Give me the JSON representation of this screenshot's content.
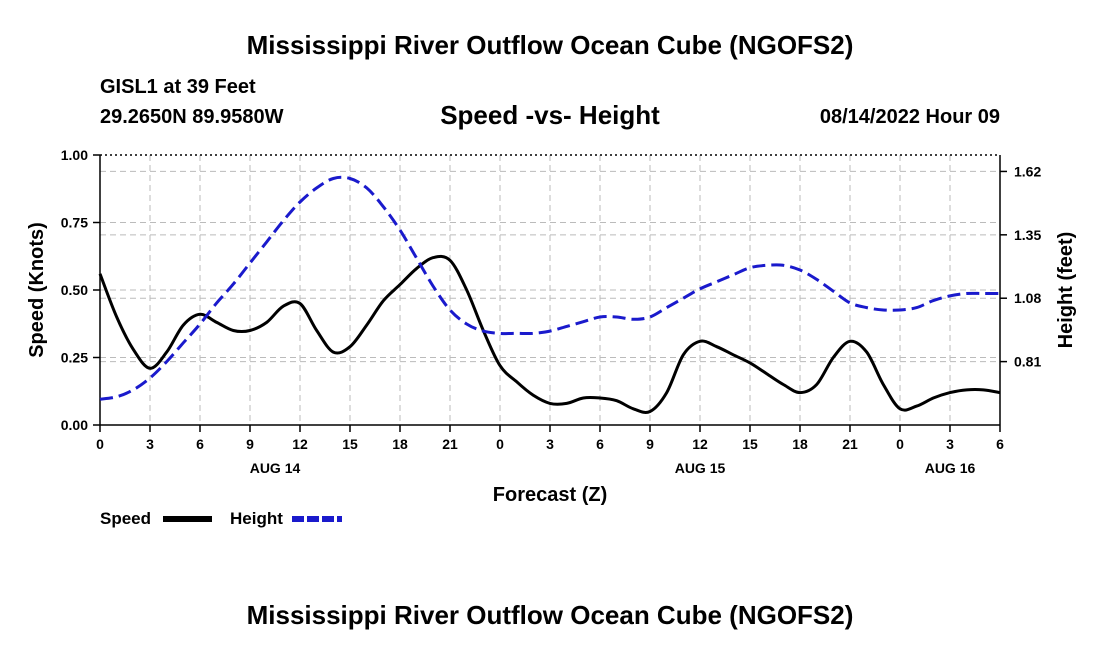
{
  "page": {
    "title_top": "Mississippi River Outflow Ocean Cube (NGOFS2)",
    "title_bottom": "Mississippi River Outflow Ocean Cube (NGOFS2)",
    "station": "GISL1 at 39 Feet",
    "coords": "29.2650N  89.9580W",
    "datetime": "08/14/2022 Hour 09"
  },
  "colors": {
    "speed": "#000000",
    "height": "#1a1acc",
    "grid": "#bbbbbb"
  },
  "chart_data": {
    "type": "line",
    "title": "Speed -vs- Height",
    "xlabel": "Forecast (Z)",
    "ylabel": "Speed (Knots)",
    "ylabel_right": "Height (feet)",
    "x_ticks": [
      {
        "x": 0,
        "label": "0"
      },
      {
        "x": 3,
        "label": "3"
      },
      {
        "x": 6,
        "label": "6"
      },
      {
        "x": 9,
        "label": "9"
      },
      {
        "x": 12,
        "label": "12"
      },
      {
        "x": 15,
        "label": "15"
      },
      {
        "x": 18,
        "label": "18"
      },
      {
        "x": 21,
        "label": "21"
      },
      {
        "x": 24,
        "label": "0"
      },
      {
        "x": 27,
        "label": "3"
      },
      {
        "x": 30,
        "label": "6"
      },
      {
        "x": 33,
        "label": "9"
      },
      {
        "x": 36,
        "label": "12"
      },
      {
        "x": 39,
        "label": "15"
      },
      {
        "x": 42,
        "label": "18"
      },
      {
        "x": 45,
        "label": "21"
      },
      {
        "x": 48,
        "label": "0"
      },
      {
        "x": 51,
        "label": "3"
      },
      {
        "x": 54,
        "label": "6"
      }
    ],
    "day_labels": [
      {
        "x": 10.5,
        "label": "AUG 14"
      },
      {
        "x": 36,
        "label": "AUG 15"
      },
      {
        "x": 51,
        "label": "AUG 16"
      }
    ],
    "xlim": [
      0,
      54
    ],
    "ylim": [
      0,
      1.0
    ],
    "yticks": [
      {
        "v": 0.0,
        "label": "0.00"
      },
      {
        "v": 0.25,
        "label": "0.25"
      },
      {
        "v": 0.5,
        "label": "0.50"
      },
      {
        "v": 0.75,
        "label": "0.75"
      },
      {
        "v": 1.0,
        "label": "1.00"
      }
    ],
    "ylim_right": [
      0.54,
      1.69
    ],
    "yticks_right": [
      {
        "v": 0.81,
        "label": "0.81"
      },
      {
        "v": 1.08,
        "label": "1.08"
      },
      {
        "v": 1.35,
        "label": "1.35"
      },
      {
        "v": 1.62,
        "label": "1.62"
      }
    ],
    "grid": true,
    "legend": [
      {
        "name": "Speed",
        "style": "solid"
      },
      {
        "name": "Height",
        "style": "dashed"
      }
    ],
    "series": [
      {
        "name": "Speed",
        "axis": "left",
        "x": [
          0,
          1,
          2,
          3,
          4,
          5,
          6,
          7,
          8,
          9,
          10,
          11,
          12,
          13,
          14,
          15,
          16,
          17,
          18,
          19,
          20,
          21,
          22,
          23,
          24,
          25,
          26,
          27,
          28,
          29,
          30,
          31,
          32,
          33,
          34,
          35,
          36,
          37,
          38,
          39,
          40,
          41,
          42,
          43,
          44,
          45,
          46,
          47,
          48,
          49,
          50,
          51,
          52,
          53,
          54
        ],
        "values": [
          0.56,
          0.4,
          0.28,
          0.21,
          0.27,
          0.37,
          0.41,
          0.38,
          0.35,
          0.35,
          0.38,
          0.44,
          0.45,
          0.35,
          0.27,
          0.29,
          0.37,
          0.46,
          0.52,
          0.58,
          0.62,
          0.61,
          0.5,
          0.35,
          0.22,
          0.16,
          0.11,
          0.08,
          0.08,
          0.1,
          0.1,
          0.09,
          0.06,
          0.05,
          0.12,
          0.26,
          0.31,
          0.29,
          0.26,
          0.23,
          0.19,
          0.15,
          0.12,
          0.15,
          0.25,
          0.31,
          0.27,
          0.15,
          0.06,
          0.07,
          0.1,
          0.12,
          0.13,
          0.13,
          0.12
        ]
      },
      {
        "name": "Height",
        "axis": "right",
        "x": [
          0,
          1,
          2,
          3,
          4,
          5,
          6,
          7,
          8,
          9,
          10,
          11,
          12,
          13,
          14,
          15,
          16,
          17,
          18,
          19,
          20,
          21,
          22,
          23,
          24,
          25,
          26,
          27,
          28,
          29,
          30,
          31,
          32,
          33,
          34,
          35,
          36,
          37,
          38,
          39,
          40,
          41,
          42,
          43,
          44,
          45,
          46,
          47,
          48,
          49,
          50,
          51,
          52,
          53,
          54
        ],
        "values": [
          0.65,
          0.66,
          0.69,
          0.74,
          0.81,
          0.89,
          0.97,
          1.06,
          1.14,
          1.23,
          1.32,
          1.41,
          1.49,
          1.55,
          1.59,
          1.59,
          1.55,
          1.47,
          1.37,
          1.25,
          1.13,
          1.03,
          0.97,
          0.94,
          0.93,
          0.93,
          0.93,
          0.94,
          0.96,
          0.98,
          1.0,
          1.0,
          0.99,
          1.0,
          1.04,
          1.08,
          1.12,
          1.15,
          1.18,
          1.21,
          1.22,
          1.22,
          1.2,
          1.16,
          1.11,
          1.06,
          1.04,
          1.03,
          1.03,
          1.04,
          1.07,
          1.09,
          1.1,
          1.1,
          1.1
        ]
      }
    ]
  }
}
